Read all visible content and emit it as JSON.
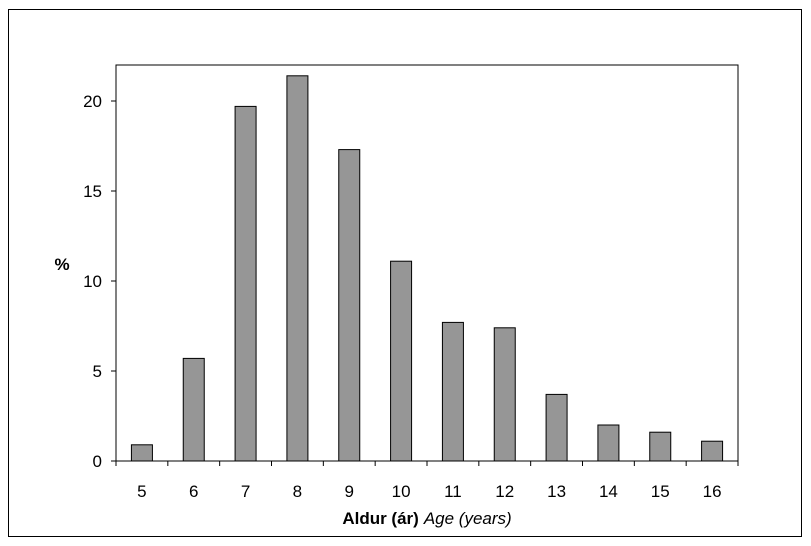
{
  "chart_data": {
    "type": "bar",
    "categories": [
      "5",
      "6",
      "7",
      "8",
      "9",
      "10",
      "11",
      "12",
      "13",
      "14",
      "15",
      "16"
    ],
    "values": [
      0.9,
      5.7,
      19.7,
      21.4,
      17.3,
      11.1,
      7.7,
      7.4,
      3.7,
      2.0,
      1.6,
      1.1
    ],
    "title": "",
    "xlabel_bold": "Aldur (ár)",
    "xlabel_italic": "Age (years)",
    "ylabel": "%",
    "ylim": [
      0,
      22
    ],
    "yticks": [
      0,
      5,
      10,
      15,
      20
    ],
    "grid": false,
    "bar_color": "#969696",
    "bar_edge_color": "#000000"
  }
}
